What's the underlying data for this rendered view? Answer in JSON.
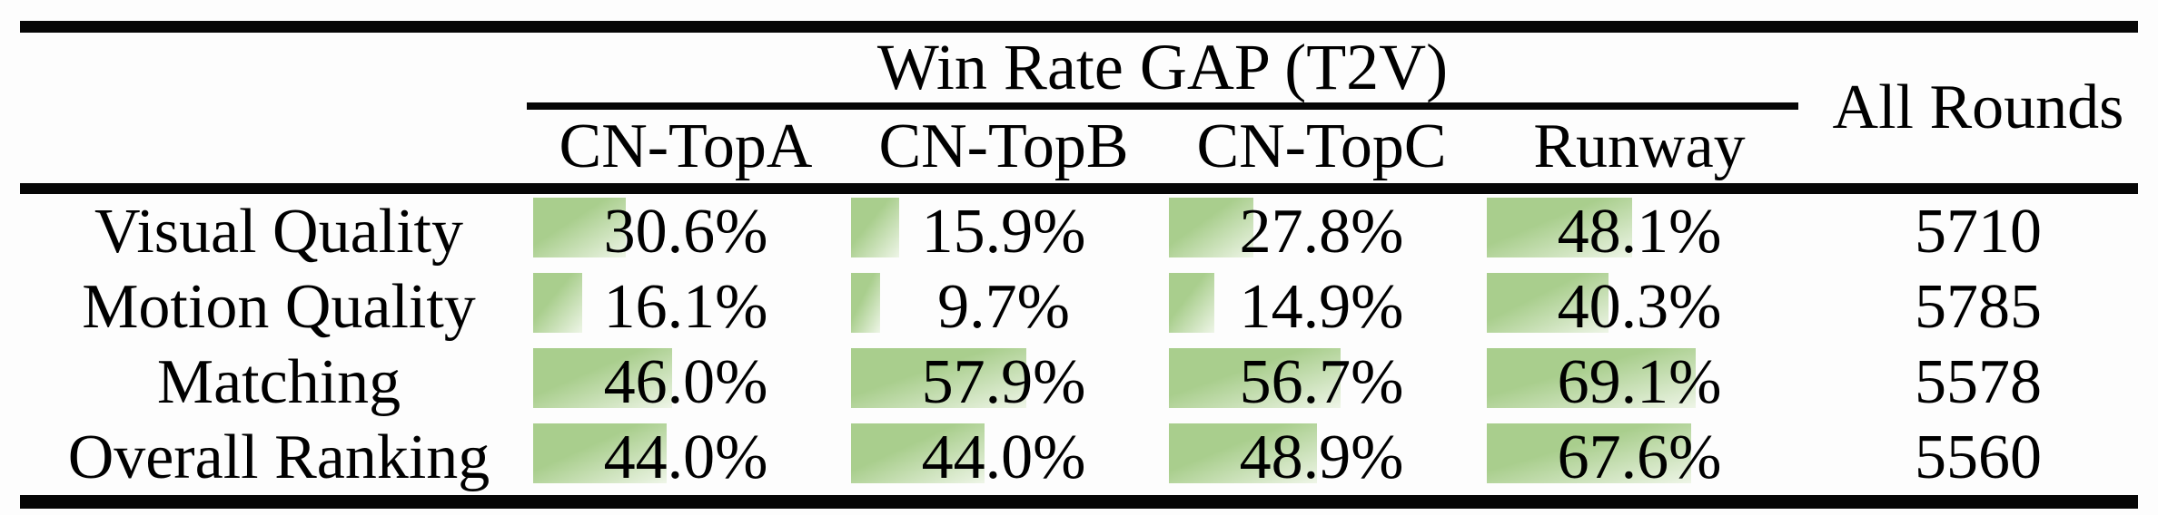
{
  "table": {
    "group_header": "Win Rate GAP (T2V)",
    "all_rounds_header": "All Rounds",
    "columns": [
      "CN-TopA",
      "CN-TopB",
      "CN-TopC",
      "Runway"
    ],
    "rows": [
      {
        "label": "Visual Quality",
        "cells": [
          {
            "text": "30.6%",
            "value": 30.6
          },
          {
            "text": "15.9%",
            "value": 15.9
          },
          {
            "text": "27.8%",
            "value": 27.8
          },
          {
            "text": "48.1%",
            "value": 48.1
          }
        ],
        "all_rounds": "5710"
      },
      {
        "label": "Motion Quality",
        "cells": [
          {
            "text": "16.1%",
            "value": 16.1
          },
          {
            "text": "9.7%",
            "value": 9.7
          },
          {
            "text": "14.9%",
            "value": 14.9
          },
          {
            "text": "40.3%",
            "value": 40.3
          }
        ],
        "all_rounds": "5785"
      },
      {
        "label": "Matching",
        "cells": [
          {
            "text": "46.0%",
            "value": 46.0
          },
          {
            "text": "57.9%",
            "value": 57.9
          },
          {
            "text": "56.7%",
            "value": 56.7
          },
          {
            "text": "69.1%",
            "value": 69.1
          }
        ],
        "all_rounds": "5578"
      },
      {
        "label": "Overall Ranking",
        "cells": [
          {
            "text": "44.0%",
            "value": 44.0
          },
          {
            "text": "44.0%",
            "value": 44.0
          },
          {
            "text": "48.9%",
            "value": 48.9
          },
          {
            "text": "67.6%",
            "value": 67.6
          }
        ],
        "all_rounds": "5560"
      }
    ],
    "bar_color": "#a9ce8d",
    "bar_fade_color": "#eef5e7",
    "rule_color": "#060606"
  },
  "chart_data": {
    "type": "table",
    "title": "Win Rate GAP (T2V)",
    "columns": [
      "CN-TopA",
      "CN-TopB",
      "CN-TopC",
      "Runway",
      "All Rounds"
    ],
    "rows": [
      "Visual Quality",
      "Motion Quality",
      "Matching",
      "Overall Ranking"
    ],
    "win_rate_gap_percent": [
      [
        30.6,
        15.9,
        27.8,
        48.1
      ],
      [
        16.1,
        9.7,
        14.9,
        40.3
      ],
      [
        46.0,
        57.9,
        56.7,
        69.1
      ],
      [
        44.0,
        44.0,
        48.9,
        67.6
      ]
    ],
    "all_rounds": [
      5710,
      5785,
      5578,
      5560
    ],
    "bar_style": "inline green data bars, width proportional to percent, gradient fading to white"
  }
}
